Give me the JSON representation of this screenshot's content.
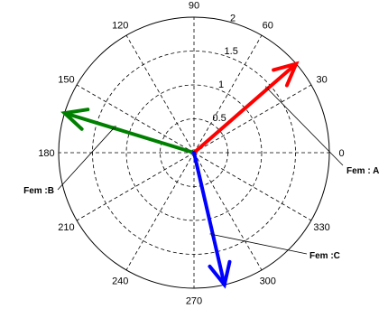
{
  "chart_data": {
    "type": "polar",
    "title": "",
    "r_max": 2,
    "r_ticks": [
      {
        "value": 0.5,
        "label": "0.5"
      },
      {
        "value": 1,
        "label": "1"
      },
      {
        "value": 1.5,
        "label": "1.5"
      },
      {
        "value": 2,
        "label": "2"
      }
    ],
    "angle_ticks_deg": [
      0,
      30,
      60,
      90,
      120,
      150,
      180,
      210,
      240,
      270,
      300,
      330
    ],
    "angle_tick_labels": [
      "0",
      "30",
      "60",
      "90",
      "120",
      "150",
      "180",
      "210",
      "240",
      "270",
      "300",
      "330"
    ],
    "grid": true,
    "series": [
      {
        "name": "Fem : A",
        "angle_deg": 41,
        "magnitude": 2.0,
        "color": "#ff0000"
      },
      {
        "name": "Fem :B",
        "angle_deg": 163,
        "magnitude": 2.0,
        "color": "#008000"
      },
      {
        "name": "Fem :C",
        "angle_deg": 283,
        "magnitude": 2.0,
        "color": "#0000ff"
      }
    ]
  }
}
